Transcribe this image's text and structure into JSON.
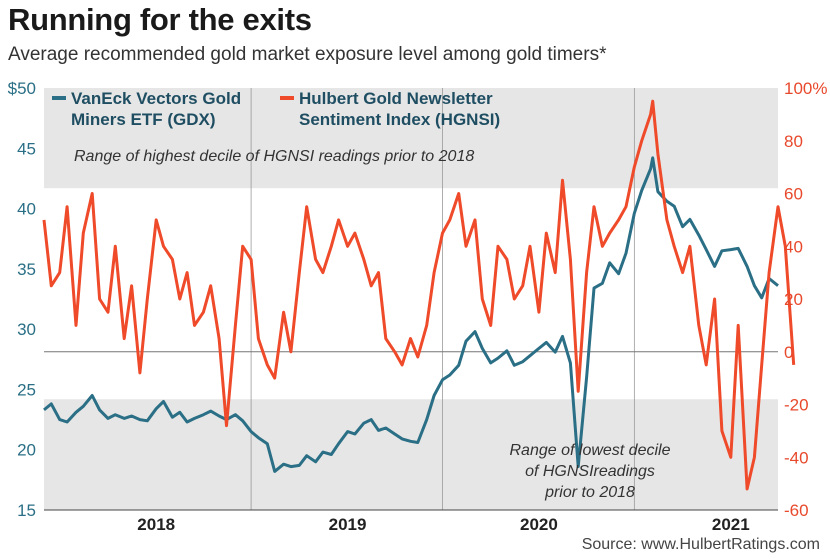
{
  "header": {
    "title": "Running for the exits",
    "subtitle": "Average recommended gold market exposure level among gold timers*",
    "source": "Source: www.HulbertRatings.com"
  },
  "colors": {
    "gdx": "#2a6f86",
    "hgnsi": "#ef4a2a",
    "band": "#e6e6e6",
    "grid": "#9a9a9a"
  },
  "chart_data": {
    "type": "line",
    "title": "Running for the exits",
    "subtitle": "Average recommended gold market exposure level among gold timers*",
    "x_axis": {
      "type": "date",
      "range": [
        "2017-06-01",
        "2021-04-01"
      ],
      "tick_labels": [
        "2018",
        "2019",
        "2020",
        "2021"
      ],
      "tick_dates": [
        "2018-01-01",
        "2019-01-01",
        "2020-01-01",
        "2021-01-01"
      ]
    },
    "y_left": {
      "range": [
        15,
        50
      ],
      "tick_labels": [
        "15",
        "20",
        "25",
        "30",
        "35",
        "40",
        "45",
        "$50"
      ],
      "tick_values": [
        15,
        20,
        25,
        30,
        35,
        40,
        45,
        50
      ]
    },
    "y_right": {
      "range": [
        -60,
        100
      ],
      "tick_labels": [
        "-60",
        "-40",
        "-20",
        "0",
        "20",
        "40",
        "60",
        "80",
        "100%"
      ],
      "tick_values": [
        -60,
        -40,
        -20,
        0,
        20,
        40,
        60,
        80,
        100
      ]
    },
    "bands": [
      {
        "axis": "right",
        "from": 62,
        "to": 100,
        "label": "Range of highest decile of HGNSI readings prior to 2018"
      },
      {
        "axis": "right",
        "from": -60,
        "to": -18,
        "label_lines": [
          "Range of lowest decile",
          "of HGNSIreadings",
          "prior to 2018"
        ]
      }
    ],
    "grid": {
      "vertical_at": [
        "2018-07-01",
        "2019-07-01",
        "2020-07-01"
      ],
      "horizontal_zero": true
    },
    "legend": {
      "placement": "top-left",
      "entries": [
        {
          "series": "gdx",
          "lines": [
            "VanEck Vectors Gold",
            "Miners ETF (GDX)"
          ]
        },
        {
          "series": "hgnsi",
          "lines": [
            "Hulbert Gold Newsletter",
            "Sentiment Index (HGNSI)"
          ]
        }
      ]
    },
    "series": [
      {
        "name": "VanEck Vectors Gold Miners ETF (GDX)",
        "key": "gdx",
        "axis": "left",
        "points": [
          [
            "2017-06-01",
            23.3
          ],
          [
            "2017-06-15",
            23.8
          ],
          [
            "2017-07-01",
            22.5
          ],
          [
            "2017-07-15",
            22.3
          ],
          [
            "2017-08-01",
            23.1
          ],
          [
            "2017-08-15",
            23.6
          ],
          [
            "2017-09-01",
            24.5
          ],
          [
            "2017-09-15",
            23.3
          ],
          [
            "2017-10-01",
            22.6
          ],
          [
            "2017-10-15",
            22.9
          ],
          [
            "2017-11-01",
            22.6
          ],
          [
            "2017-11-15",
            22.8
          ],
          [
            "2017-12-01",
            22.5
          ],
          [
            "2017-12-15",
            22.4
          ],
          [
            "2018-01-01",
            23.4
          ],
          [
            "2018-01-15",
            24.0
          ],
          [
            "2018-02-01",
            22.7
          ],
          [
            "2018-02-15",
            23.1
          ],
          [
            "2018-03-01",
            22.3
          ],
          [
            "2018-03-15",
            22.6
          ],
          [
            "2018-04-01",
            22.9
          ],
          [
            "2018-04-15",
            23.2
          ],
          [
            "2018-05-01",
            22.8
          ],
          [
            "2018-05-15",
            22.5
          ],
          [
            "2018-06-01",
            22.9
          ],
          [
            "2018-06-15",
            22.4
          ],
          [
            "2018-07-01",
            21.5
          ],
          [
            "2018-07-15",
            21.0
          ],
          [
            "2018-08-01",
            20.5
          ],
          [
            "2018-08-15",
            18.2
          ],
          [
            "2018-09-01",
            18.8
          ],
          [
            "2018-09-15",
            18.6
          ],
          [
            "2018-10-01",
            18.7
          ],
          [
            "2018-10-15",
            19.5
          ],
          [
            "2018-11-01",
            19.0
          ],
          [
            "2018-11-15",
            19.8
          ],
          [
            "2018-12-01",
            19.6
          ],
          [
            "2018-12-15",
            20.5
          ],
          [
            "2019-01-01",
            21.5
          ],
          [
            "2019-01-15",
            21.3
          ],
          [
            "2019-02-01",
            22.2
          ],
          [
            "2019-02-15",
            22.5
          ],
          [
            "2019-03-01",
            21.6
          ],
          [
            "2019-03-15",
            21.8
          ],
          [
            "2019-04-01",
            21.3
          ],
          [
            "2019-04-15",
            20.9
          ],
          [
            "2019-05-01",
            20.7
          ],
          [
            "2019-05-15",
            20.6
          ],
          [
            "2019-06-01",
            22.5
          ],
          [
            "2019-06-15",
            24.5
          ],
          [
            "2019-07-01",
            25.8
          ],
          [
            "2019-07-15",
            26.2
          ],
          [
            "2019-08-01",
            27.0
          ],
          [
            "2019-08-15",
            29.0
          ],
          [
            "2019-09-01",
            29.8
          ],
          [
            "2019-09-15",
            28.4
          ],
          [
            "2019-10-01",
            27.2
          ],
          [
            "2019-10-15",
            27.6
          ],
          [
            "2019-11-01",
            28.2
          ],
          [
            "2019-11-15",
            27.0
          ],
          [
            "2019-12-01",
            27.3
          ],
          [
            "2019-12-15",
            27.8
          ],
          [
            "2020-01-01",
            28.4
          ],
          [
            "2020-01-15",
            28.9
          ],
          [
            "2020-02-01",
            28.1
          ],
          [
            "2020-02-15",
            29.4
          ],
          [
            "2020-03-01",
            27.2
          ],
          [
            "2020-03-16",
            18.6
          ],
          [
            "2020-04-01",
            26.0
          ],
          [
            "2020-04-15",
            33.4
          ],
          [
            "2020-05-01",
            33.8
          ],
          [
            "2020-05-15",
            35.5
          ],
          [
            "2020-06-01",
            34.6
          ],
          [
            "2020-06-15",
            36.3
          ],
          [
            "2020-07-01",
            39.6
          ],
          [
            "2020-07-15",
            41.5
          ],
          [
            "2020-08-01",
            43.3
          ],
          [
            "2020-08-05",
            44.2
          ],
          [
            "2020-08-15",
            41.4
          ],
          [
            "2020-09-01",
            40.6
          ],
          [
            "2020-09-15",
            40.2
          ],
          [
            "2020-10-01",
            38.5
          ],
          [
            "2020-10-15",
            39.1
          ],
          [
            "2020-11-01",
            37.8
          ],
          [
            "2020-11-15",
            36.6
          ],
          [
            "2020-12-01",
            35.2
          ],
          [
            "2020-12-15",
            36.5
          ],
          [
            "2021-01-01",
            36.6
          ],
          [
            "2021-01-15",
            36.7
          ],
          [
            "2021-02-01",
            35.2
          ],
          [
            "2021-02-15",
            33.6
          ],
          [
            "2021-03-01",
            32.6
          ],
          [
            "2021-03-15",
            34.2
          ],
          [
            "2021-04-01",
            33.6
          ]
        ]
      },
      {
        "name": "Hulbert Gold Newsletter Sentiment Index (HGNSI)",
        "key": "hgnsi",
        "axis": "right",
        "points": [
          [
            "2017-06-01",
            50
          ],
          [
            "2017-06-15",
            25
          ],
          [
            "2017-07-01",
            30
          ],
          [
            "2017-07-15",
            55
          ],
          [
            "2017-08-01",
            10
          ],
          [
            "2017-08-15",
            45
          ],
          [
            "2017-09-01",
            60
          ],
          [
            "2017-09-15",
            20
          ],
          [
            "2017-10-01",
            15
          ],
          [
            "2017-10-15",
            40
          ],
          [
            "2017-11-01",
            5
          ],
          [
            "2017-11-15",
            25
          ],
          [
            "2017-12-01",
            -8
          ],
          [
            "2017-12-15",
            20
          ],
          [
            "2018-01-01",
            50
          ],
          [
            "2018-01-15",
            40
          ],
          [
            "2018-02-01",
            35
          ],
          [
            "2018-02-15",
            20
          ],
          [
            "2018-03-01",
            30
          ],
          [
            "2018-03-15",
            10
          ],
          [
            "2018-04-01",
            15
          ],
          [
            "2018-04-15",
            25
          ],
          [
            "2018-05-01",
            5
          ],
          [
            "2018-05-15",
            -28
          ],
          [
            "2018-06-01",
            10
          ],
          [
            "2018-06-15",
            40
          ],
          [
            "2018-07-01",
            35
          ],
          [
            "2018-07-15",
            5
          ],
          [
            "2018-08-01",
            -5
          ],
          [
            "2018-08-15",
            -10
          ],
          [
            "2018-09-01",
            15
          ],
          [
            "2018-09-15",
            0
          ],
          [
            "2018-10-01",
            30
          ],
          [
            "2018-10-15",
            55
          ],
          [
            "2018-11-01",
            35
          ],
          [
            "2018-11-15",
            30
          ],
          [
            "2018-12-01",
            40
          ],
          [
            "2018-12-15",
            50
          ],
          [
            "2019-01-01",
            40
          ],
          [
            "2019-01-15",
            45
          ],
          [
            "2019-02-01",
            35
          ],
          [
            "2019-02-15",
            25
          ],
          [
            "2019-03-01",
            30
          ],
          [
            "2019-03-15",
            5
          ],
          [
            "2019-04-01",
            0
          ],
          [
            "2019-04-15",
            -5
          ],
          [
            "2019-05-01",
            5
          ],
          [
            "2019-05-15",
            -2
          ],
          [
            "2019-06-01",
            10
          ],
          [
            "2019-06-15",
            30
          ],
          [
            "2019-07-01",
            45
          ],
          [
            "2019-07-15",
            50
          ],
          [
            "2019-08-01",
            60
          ],
          [
            "2019-08-15",
            40
          ],
          [
            "2019-09-01",
            50
          ],
          [
            "2019-09-15",
            20
          ],
          [
            "2019-10-01",
            10
          ],
          [
            "2019-10-15",
            40
          ],
          [
            "2019-11-01",
            35
          ],
          [
            "2019-11-15",
            20
          ],
          [
            "2019-12-01",
            25
          ],
          [
            "2019-12-15",
            40
          ],
          [
            "2020-01-01",
            15
          ],
          [
            "2020-01-15",
            45
          ],
          [
            "2020-02-01",
            30
          ],
          [
            "2020-02-15",
            65
          ],
          [
            "2020-03-01",
            35
          ],
          [
            "2020-03-16",
            -15
          ],
          [
            "2020-04-01",
            30
          ],
          [
            "2020-04-15",
            55
          ],
          [
            "2020-05-01",
            40
          ],
          [
            "2020-05-15",
            45
          ],
          [
            "2020-06-01",
            50
          ],
          [
            "2020-06-15",
            55
          ],
          [
            "2020-07-01",
            70
          ],
          [
            "2020-07-15",
            80
          ],
          [
            "2020-08-01",
            90
          ],
          [
            "2020-08-05",
            95
          ],
          [
            "2020-08-15",
            75
          ],
          [
            "2020-09-01",
            50
          ],
          [
            "2020-09-15",
            40
          ],
          [
            "2020-10-01",
            30
          ],
          [
            "2020-10-15",
            40
          ],
          [
            "2020-11-01",
            10
          ],
          [
            "2020-11-15",
            -5
          ],
          [
            "2020-12-01",
            20
          ],
          [
            "2020-12-15",
            -30
          ],
          [
            "2021-01-01",
            -40
          ],
          [
            "2021-01-15",
            10
          ],
          [
            "2021-02-01",
            -52
          ],
          [
            "2021-02-15",
            -40
          ],
          [
            "2021-03-01",
            -5
          ],
          [
            "2021-03-15",
            30
          ],
          [
            "2021-04-01",
            55
          ],
          [
            "2021-04-15",
            40
          ],
          [
            "2021-05-01",
            -5
          ]
        ]
      }
    ]
  }
}
